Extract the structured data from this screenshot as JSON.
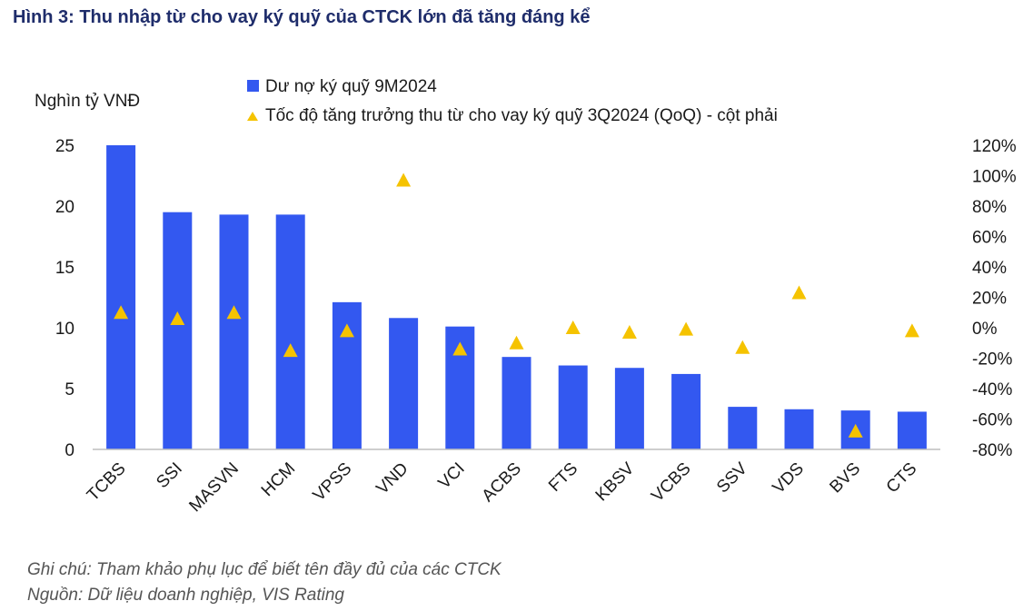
{
  "figure": {
    "title": "Hình 3: Thu nhập từ cho vay ký quỹ của CTCK lớn đã tăng đáng kể",
    "note": "Ghi chú: Tham khảo phụ lục để biết tên đầy đủ của các CTCK",
    "source": "Nguồn: Dữ liệu doanh nghiệp, VIS Rating"
  },
  "colors": {
    "bar": "#3358f0",
    "marker": "#f5c300",
    "axis": "#bdbdbd",
    "text": "#1a1a1a"
  },
  "chart_data": {
    "type": "bar",
    "categories": [
      "TCBS",
      "SSI",
      "MASVN",
      "HCM",
      "VPSS",
      "VND",
      "VCI",
      "ACBS",
      "FTS",
      "KBSV",
      "VCBS",
      "SSV",
      "VDS",
      "BVS",
      "CTS"
    ],
    "ylabel": "Nghìn tỷ VNĐ",
    "ylim": [
      0,
      25
    ],
    "yticks": [
      0,
      5,
      10,
      15,
      20,
      25
    ],
    "y2lim": [
      -80,
      120
    ],
    "y2ticks": [
      -80,
      -60,
      -40,
      -20,
      0,
      20,
      40,
      60,
      80,
      100,
      120
    ],
    "y2tick_suffix": "%",
    "legend_position": "top",
    "grid": false,
    "series": [
      {
        "name": "Dư nợ ký quỹ 9M2024",
        "type": "bar",
        "axis": "left",
        "values": [
          25.0,
          19.5,
          19.3,
          19.3,
          12.1,
          10.8,
          10.1,
          7.6,
          6.9,
          6.7,
          6.2,
          3.5,
          3.3,
          3.2,
          3.1
        ]
      },
      {
        "name": "Tốc độ tăng trưởng thu từ cho vay ký quỹ 3Q2024 (QoQ) - cột phải",
        "type": "scatter",
        "marker": "triangle",
        "axis": "right",
        "values": [
          10,
          6,
          10,
          -15,
          -2,
          97,
          -14,
          -10,
          0,
          -3,
          -1,
          -13,
          23,
          -68,
          -2
        ]
      }
    ]
  }
}
